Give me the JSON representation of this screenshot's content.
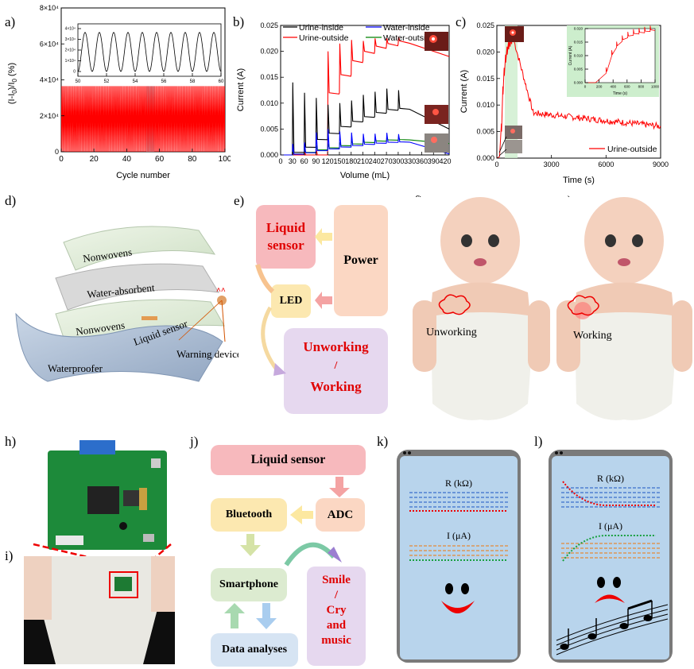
{
  "labels": {
    "a": "a)",
    "b": "b)",
    "c": "c)",
    "d": "d)",
    "e": "e)",
    "f": "f)",
    "g": "g)",
    "h": "h)",
    "i": "i)",
    "j": "j)",
    "k": "k)",
    "l": "l)"
  },
  "chart_data": [
    {
      "type": "line",
      "panel": "a",
      "xlabel": "Cycle number",
      "ylabel": "(I-I0)/I0 (%)",
      "xlim": [
        0,
        100
      ],
      "ylim": [
        0,
        80000
      ],
      "xticks": [
        "0",
        "20",
        "40",
        "60",
        "80",
        "100"
      ],
      "yticks": [
        "0",
        "2×10⁴",
        "4×10⁴",
        "6×10⁴",
        "8×10⁴"
      ],
      "series": [
        {
          "color": "#ff0000",
          "baseline": 0,
          "peak": 36500,
          "cycles": 100
        }
      ],
      "highlight": [
        52,
        57
      ],
      "inset": {
        "xlim": [
          50,
          60
        ],
        "xticks": [
          "50",
          "52",
          "54",
          "56",
          "58",
          "60"
        ],
        "yticks": [
          "0",
          "1×10⁴",
          "2×10⁴",
          "3×10⁴",
          "4×10⁴"
        ],
        "peak": 36500
      }
    },
    {
      "type": "line",
      "panel": "b",
      "xlabel": "Volume (mL)",
      "ylabel": "Current (A)",
      "xlim": [
        0,
        430
      ],
      "ylim": [
        0,
        0.025
      ],
      "xticks": [
        "0",
        "30",
        "60",
        "90",
        "120",
        "150",
        "180",
        "210",
        "240",
        "270",
        "300",
        "330",
        "360",
        "390",
        "420"
      ],
      "yticks": [
        "0.000",
        "0.005",
        "0.010",
        "0.015",
        "0.020",
        "0.025"
      ],
      "legend": [
        "Urine-inside",
        "Water-inside",
        "Urine-outside",
        "Water-outside"
      ],
      "colors": [
        "#000000",
        "#0000ff",
        "#ff0000",
        "#008000"
      ],
      "pulse_volumes": [
        30,
        60,
        90,
        120,
        150,
        180,
        210,
        240,
        270,
        300
      ],
      "urine_outside_plateau": [
        0.0,
        0.0,
        0.0,
        0.012,
        0.0155,
        0.0182,
        0.02,
        0.021,
        0.0215,
        0.022
      ],
      "urine_inside_plateau": [
        0.0005,
        0.0015,
        0.003,
        0.0042,
        0.0055,
        0.0065,
        0.0074,
        0.0082,
        0.0088,
        0.009
      ]
    },
    {
      "type": "line",
      "panel": "c",
      "xlabel": "Time (s)",
      "ylabel": "Current (A)",
      "xlim": [
        0,
        9000
      ],
      "ylim": [
        0,
        0.025
      ],
      "xticks": [
        "0",
        "3000",
        "6000",
        "9000"
      ],
      "yticks": [
        "0.000",
        "0.005",
        "0.010",
        "0.015",
        "0.020",
        "0.025"
      ],
      "legend": [
        "Urine-outside"
      ],
      "colors": [
        "#ff0000"
      ],
      "inset": {
        "xlabel": "Time (s)",
        "ylabel": "Current (A)",
        "xticks": [
          "0",
          "200",
          "400",
          "600",
          "800",
          "1000"
        ],
        "yticks": [
          "0.000",
          "0.005",
          "0.010",
          "0.015",
          "0.020"
        ]
      }
    }
  ],
  "layers": {
    "nonwovens_top": "Nonwovens",
    "water_absorbent": "Water-absorbent",
    "nonwovens_bottom": "Nonwovens",
    "liquid_sensor": "Liquid sensor",
    "waterproofer": "Waterproofer",
    "warning_device": "Warning device"
  },
  "circuit": {
    "sensor": "Liquid sensor",
    "power": "Power",
    "led": "LED",
    "unworking": "Unworking",
    "slash": "/",
    "working": "Working"
  },
  "dolls": {
    "f": "Unworking",
    "g": "Working"
  },
  "system": {
    "sensor": "Liquid sensor",
    "adc": "ADC",
    "bluetooth": "Bluetooth",
    "smartphone": "Smartphone",
    "data": "Data analyses",
    "smile": "Smile",
    "slash": "/",
    "cry": "Cry",
    "and": "and",
    "music": "music"
  },
  "phones": {
    "r_label": "R (kΩ)",
    "i_label": "I (μA)"
  },
  "colors": {
    "red": "#ff0000",
    "pink_box": "#f7b9bd",
    "peach_box": "#fbd7c3",
    "lavender_box": "#e6d8ef",
    "yellow_box": "#fce8b0",
    "green_box": "#dcebd0",
    "blue_box": "#d6e4f3",
    "phone_screen": "#b8d4ec"
  }
}
